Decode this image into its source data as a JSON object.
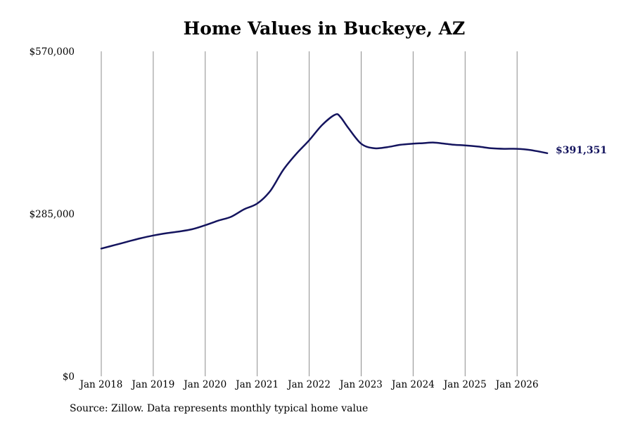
{
  "chart_data": {
    "type": "line",
    "title": "Home Values in Buckeye, AZ",
    "xlabel": "",
    "ylabel": "",
    "ylim": [
      0,
      570000
    ],
    "y_ticks": [
      {
        "value": 0,
        "label": "$0"
      },
      {
        "value": 285000,
        "label": "$285,000"
      },
      {
        "value": 570000,
        "label": "$570,000"
      }
    ],
    "x_ticks": [
      {
        "value": 2018,
        "label": "Jan 2018"
      },
      {
        "value": 2019,
        "label": "Jan 2019"
      },
      {
        "value": 2020,
        "label": "Jan 2020"
      },
      {
        "value": 2021,
        "label": "Jan 2021"
      },
      {
        "value": 2022,
        "label": "Jan 2022"
      },
      {
        "value": 2023,
        "label": "Jan 2023"
      },
      {
        "value": 2024,
        "label": "Jan 2024"
      },
      {
        "value": 2025,
        "label": "Jan 2025"
      },
      {
        "value": 2026,
        "label": "Jan 2026"
      }
    ],
    "xlim": [
      2018,
      2026.6
    ],
    "grid": "vertical",
    "legend": "none",
    "line_color": "#14145e",
    "series": [
      {
        "x": [
          2018.0,
          2018.25,
          2018.5,
          2018.75,
          2019.0,
          2019.25,
          2019.5,
          2019.75,
          2020.0,
          2020.25,
          2020.5,
          2020.75,
          2021.0,
          2021.25,
          2021.5,
          2021.75,
          2022.0,
          2022.25,
          2022.5,
          2022.6,
          2022.75,
          2023.0,
          2023.25,
          2023.5,
          2023.75,
          2024.0,
          2024.2,
          2024.4,
          2024.6,
          2024.8,
          2025.0,
          2025.25,
          2025.5,
          2025.75,
          2026.0,
          2026.25,
          2026.58
        ],
        "values": [
          224000,
          230000,
          236000,
          242000,
          247000,
          251000,
          254000,
          258000,
          265000,
          273000,
          280000,
          293000,
          303000,
          325000,
          362000,
          390000,
          414000,
          441000,
          459000,
          455000,
          436000,
          408000,
          400000,
          402000,
          406000,
          408000,
          409000,
          410000,
          408000,
          406000,
          405000,
          403000,
          400000,
          399000,
          399000,
          397000,
          391351
        ]
      }
    ],
    "end_label": "$391,351"
  },
  "footer": {
    "source": "Source: Zillow. Data represents monthly typical home value"
  }
}
